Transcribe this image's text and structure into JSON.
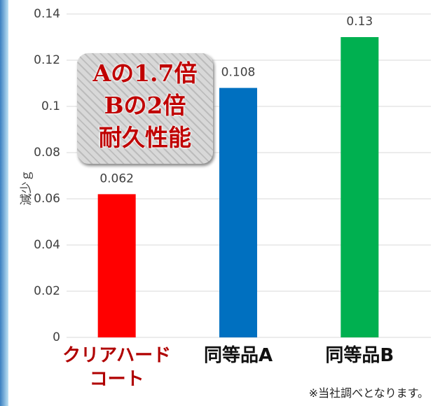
{
  "chart_data": {
    "type": "bar",
    "y_label": "減少ｇ",
    "categories": [
      "クリアハードコート",
      "同等品A",
      "同等品B"
    ],
    "values": [
      0.062,
      0.108,
      0.13
    ],
    "colors": [
      "#ff0000",
      "#0070c0",
      "#00b050"
    ],
    "ylim": [
      0,
      0.14
    ],
    "yticks": [
      0,
      0.02,
      0.04,
      0.06,
      0.08,
      0.1,
      0.12,
      0.14
    ],
    "grid": true,
    "badge": [
      "Aの1.7倍",
      "Bの2倍",
      "耐久性能"
    ],
    "footnote": "※当社調べとなります。"
  }
}
